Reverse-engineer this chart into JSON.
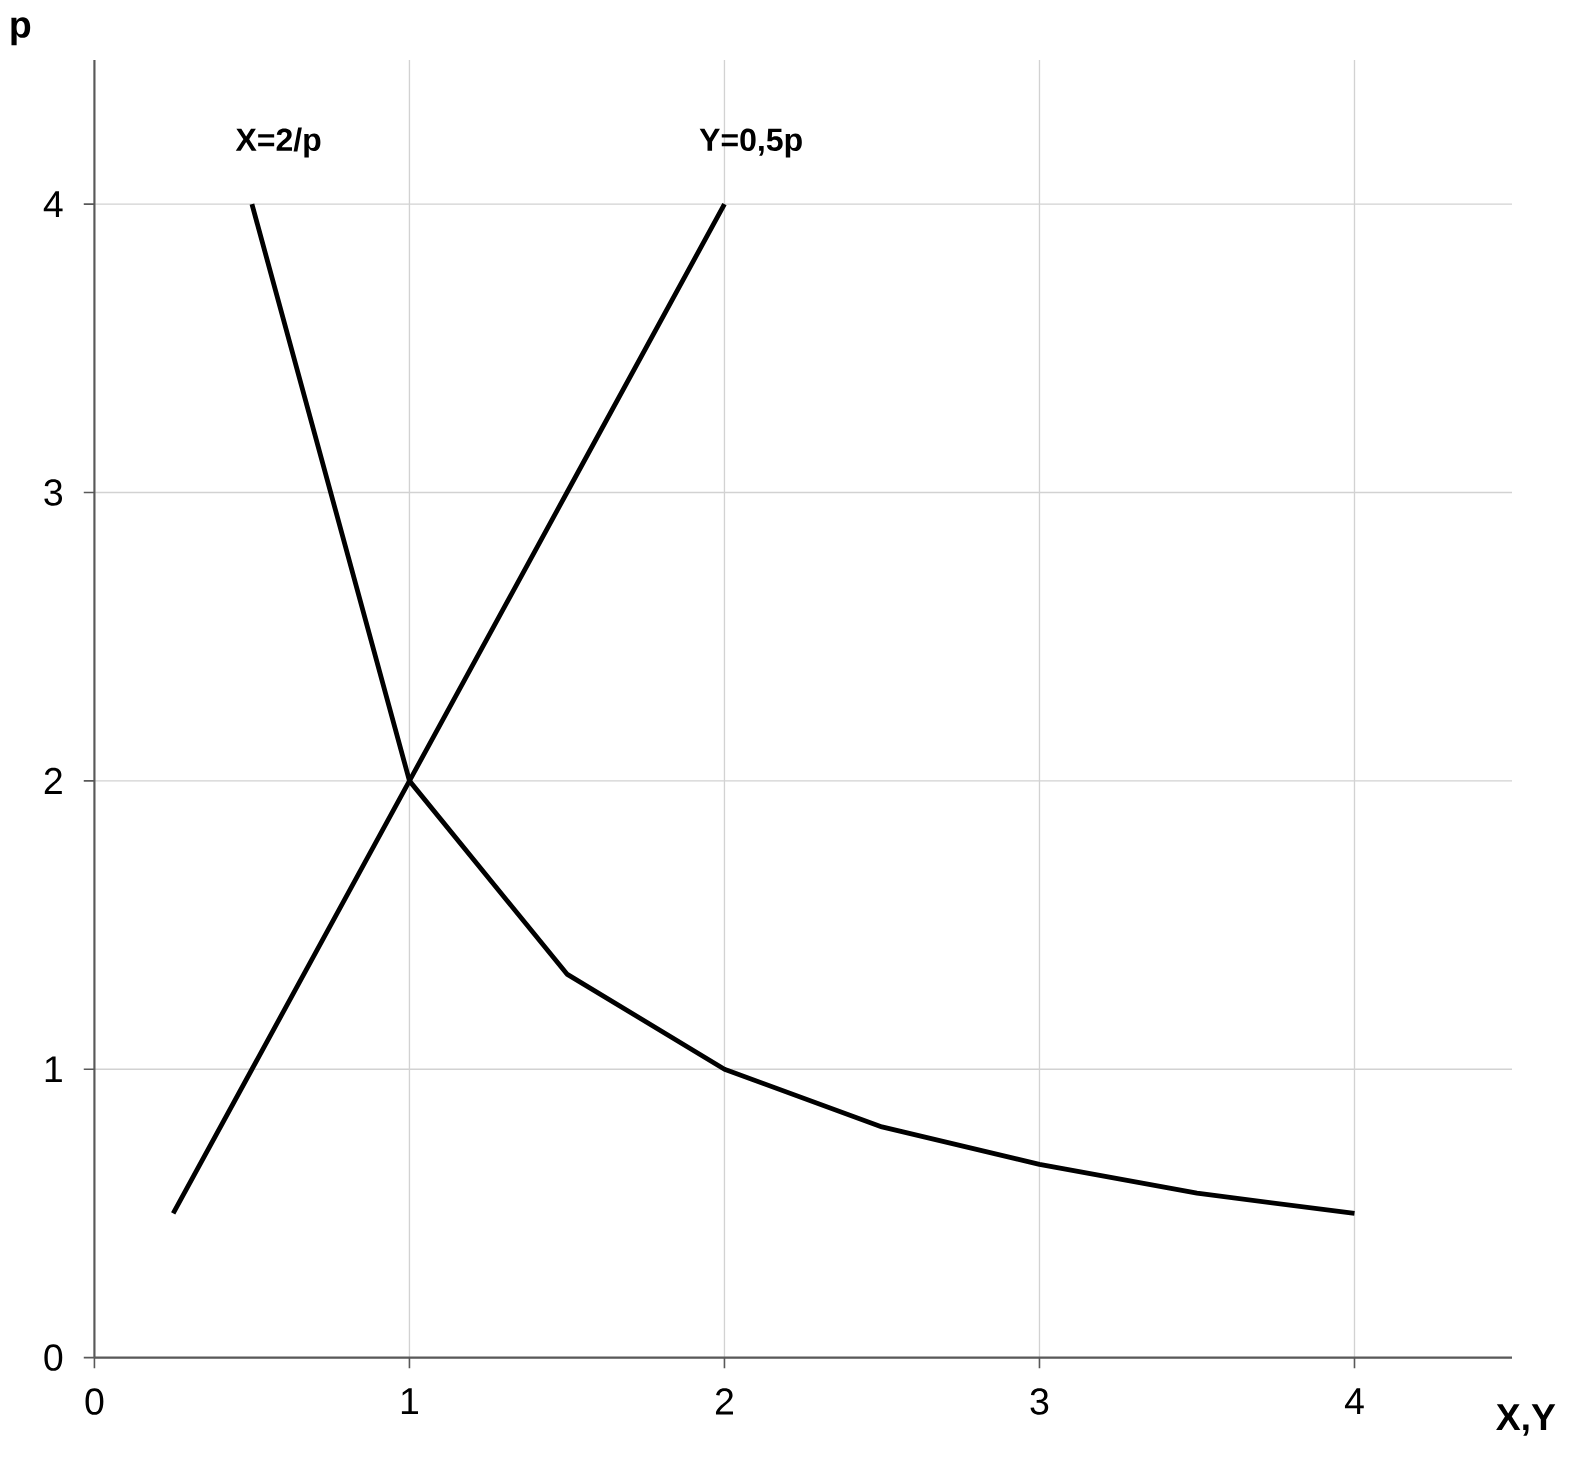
{
  "chart_data": {
    "type": "line",
    "xlabel": "X,Y",
    "ylabel": "p",
    "series": [
      {
        "name": "X=2/p",
        "color": "#000000",
        "x": [
          0.5,
          1,
          1.5,
          2,
          2.5,
          3,
          3.5,
          4
        ],
        "values": [
          4,
          2,
          1.33,
          1,
          0.8,
          0.67,
          0.57,
          0.5
        ]
      },
      {
        "name": "Y=0,5p",
        "color": "#000000",
        "x": [
          0.25,
          0.5,
          1,
          1.5,
          2
        ],
        "values": [
          0.5,
          1,
          2,
          3,
          4
        ]
      }
    ],
    "xlim": [
      0,
      4.5
    ],
    "ylim": [
      0,
      4.5
    ],
    "xticks": [
      0,
      1,
      2,
      3,
      4
    ],
    "yticks": [
      0,
      1,
      2,
      3,
      4
    ],
    "grid": true,
    "marker": "none",
    "line_style": "solid"
  }
}
